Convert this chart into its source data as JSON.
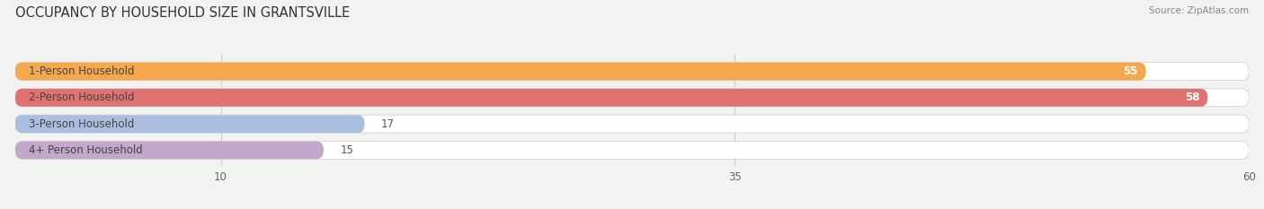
{
  "title": "OCCUPANCY BY HOUSEHOLD SIZE IN GRANTSVILLE",
  "source": "Source: ZipAtlas.com",
  "categories": [
    "1-Person Household",
    "2-Person Household",
    "3-Person Household",
    "4+ Person Household"
  ],
  "values": [
    55,
    58,
    17,
    15
  ],
  "bar_colors": [
    "#f5a84e",
    "#e07272",
    "#aabfdf",
    "#c4a8cc"
  ],
  "xlim": [
    0,
    60
  ],
  "xticks": [
    10,
    35,
    60
  ],
  "bg_color": "#f2f2f2",
  "bar_bg_color": "#ffffff",
  "title_fontsize": 10.5,
  "label_fontsize": 8.5,
  "value_fontsize": 8.5,
  "bar_height": 0.68
}
